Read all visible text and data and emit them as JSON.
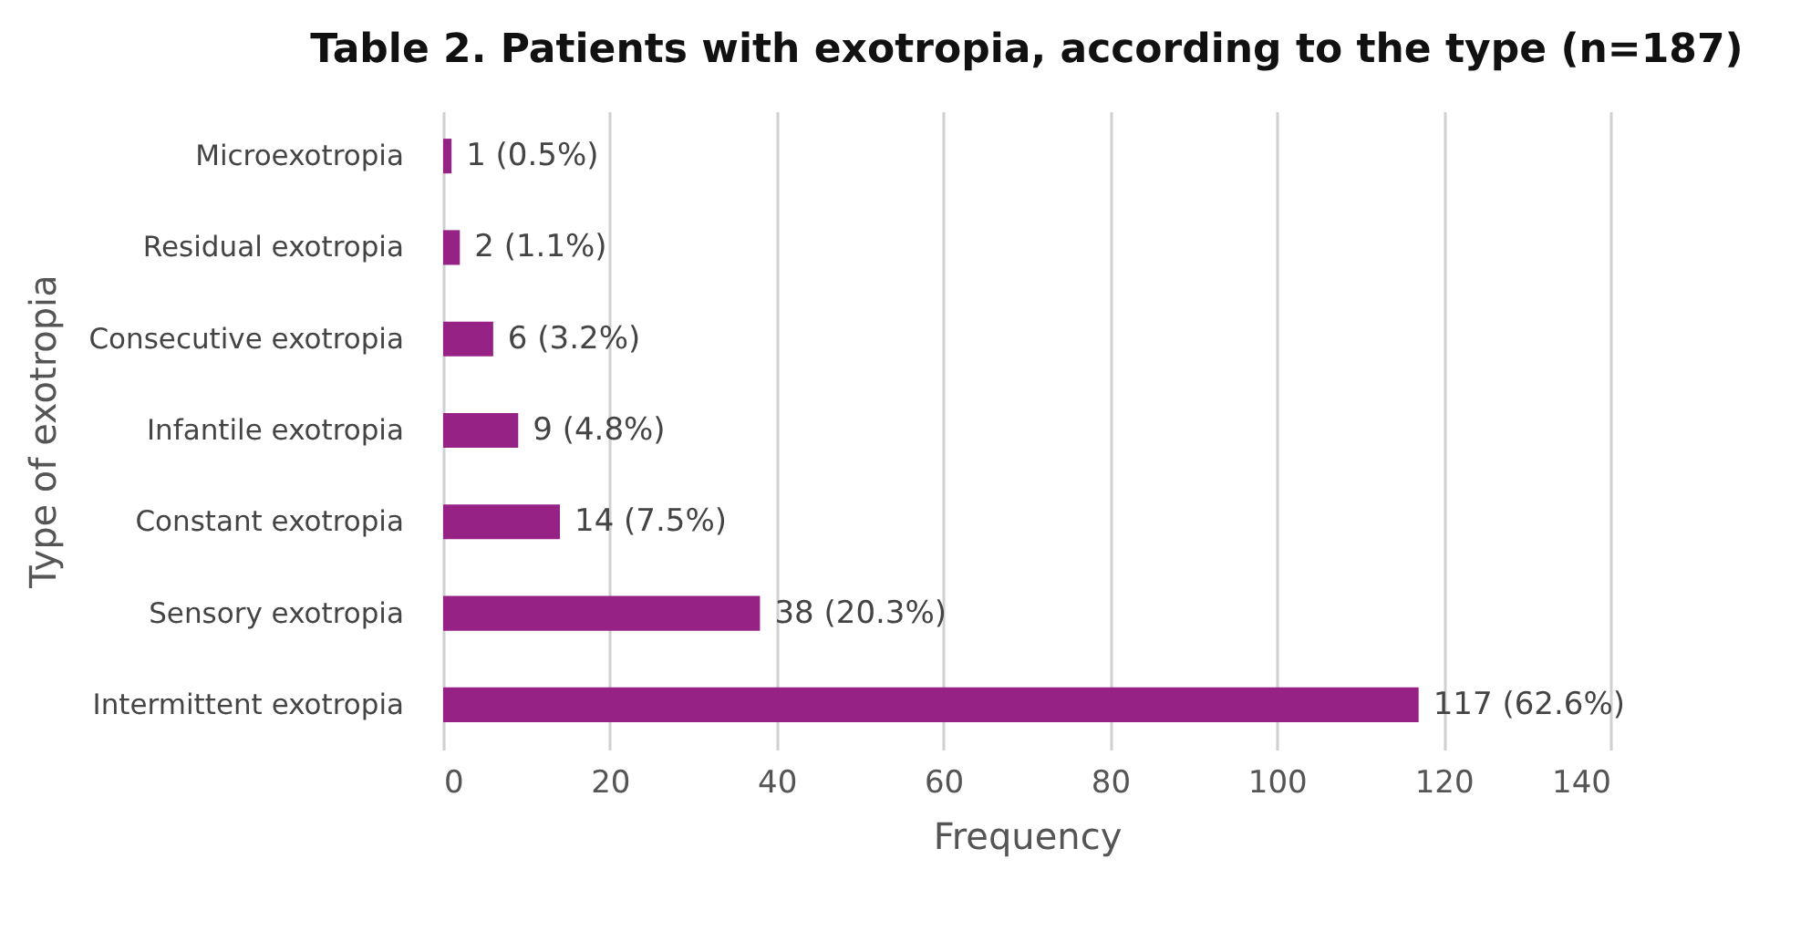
{
  "chart_data": {
    "type": "bar",
    "orientation": "horizontal",
    "title": "Table 2. Patients with exotropia, according to the type (n=187)",
    "xlabel": "Frequency",
    "ylabel": "Type of exotropia",
    "categories": [
      "Microexotropia",
      "Residual exotropia",
      "Consecutive exotropia",
      "Infantile exotropia",
      "Constant exotropia",
      "Sensory exotropia",
      "Intermittent exotropia"
    ],
    "values": [
      1,
      2,
      6,
      9,
      14,
      38,
      117
    ],
    "value_labels": [
      "1 (0.5%)",
      "2 (1.1%)",
      "6 (3.2%)",
      "9 (4.8%)",
      "14 (7.5%)",
      "38 (20.3%)",
      "117 (62.6%)"
    ],
    "color": "#962286",
    "xlim": [
      0,
      140
    ],
    "xticks": [
      0,
      20,
      40,
      60,
      80,
      100,
      120,
      140
    ],
    "grid": "x"
  }
}
